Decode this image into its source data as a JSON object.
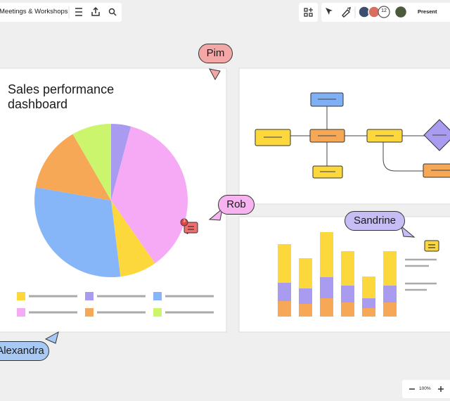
{
  "toolbar": {
    "board_title": "Meetings & Workshops",
    "collaborator_count": 12,
    "present_button": "Present"
  },
  "dashboard": {
    "title": "Sales performance dashboard"
  },
  "comments": {
    "badge_count": 3
  },
  "cursors": {
    "pim": "Pim",
    "rob": "Rob",
    "sandrine": "Sandrine",
    "alexandra": "Alexandra"
  },
  "zoom": {
    "level": "100%"
  }
}
